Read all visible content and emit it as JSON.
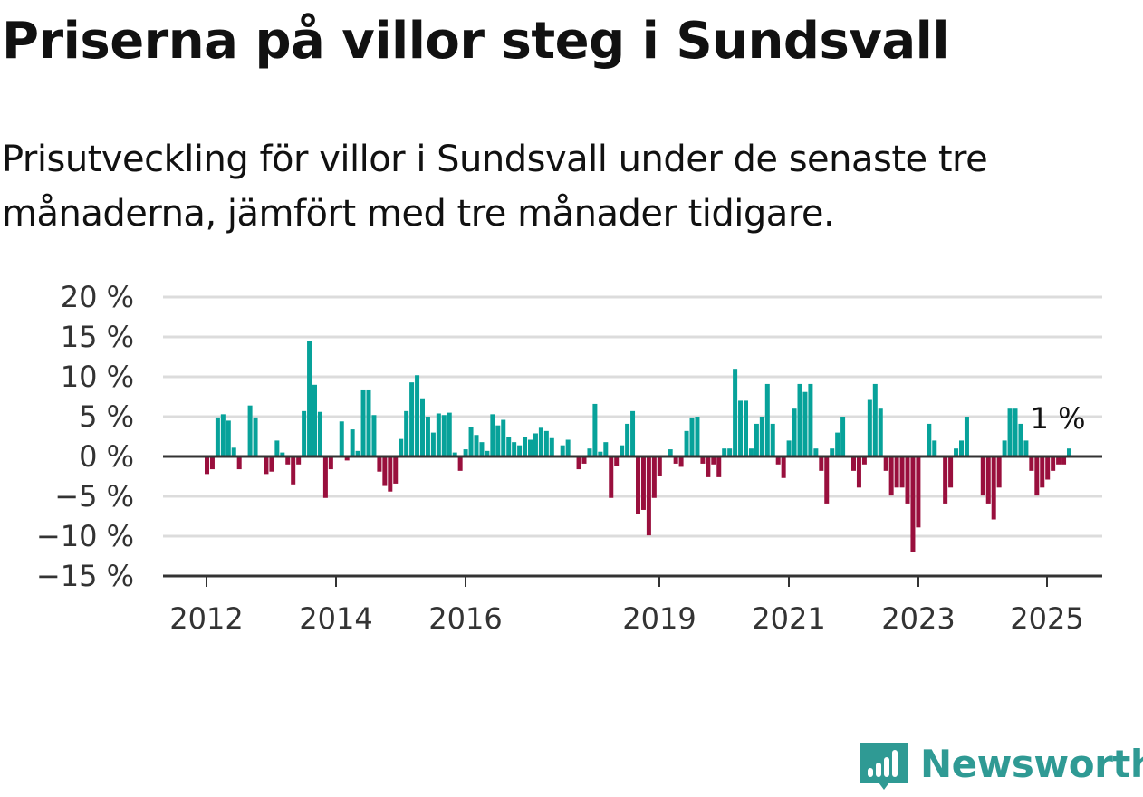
{
  "title": "Priserna på villor steg i Sundsvall",
  "subtitle": "Prisutveckling för villor i Sundsvall under de senaste tre månaderna, jämfört med tre månader tidigare.",
  "brand": {
    "name": "Newsworthy",
    "color": "#2f9a94",
    "icon": "bar-chart-speech-bubble-icon"
  },
  "colors": {
    "positive": "#07a29a",
    "negative": "#990f3d",
    "zero_line": "#333333",
    "grid": "#dcdcdc"
  },
  "chart_data": {
    "type": "bar",
    "y_unit": "%",
    "ylim": [
      -15,
      20
    ],
    "y_ticks": [
      {
        "value": 20,
        "label": "20 %"
      },
      {
        "value": 15,
        "label": "15 %"
      },
      {
        "value": 10,
        "label": "10 %"
      },
      {
        "value": 5,
        "label": "5 %"
      },
      {
        "value": 0,
        "label": "0 %"
      },
      {
        "value": -5,
        "label": "−5 %"
      },
      {
        "value": -10,
        "label": "−10 %"
      },
      {
        "value": -15,
        "label": "−15 %"
      }
    ],
    "x_ticks": [
      "2012",
      "2014",
      "2016",
      "2019",
      "2021",
      "2023",
      "2025"
    ],
    "grid": true,
    "last_value_label": "1 %",
    "values": [
      -2.2,
      -1.6,
      4.9,
      5.3,
      4.5,
      1.1,
      -1.6,
      0,
      6.4,
      4.9,
      0,
      -2.2,
      -1.9,
      2.0,
      0.5,
      -1.0,
      -3.5,
      -1.0,
      5.7,
      14.5,
      9.0,
      5.6,
      -5.2,
      -1.6,
      0,
      4.4,
      -0.5,
      3.4,
      0.7,
      8.3,
      8.3,
      5.2,
      -1.9,
      -3.7,
      -4.4,
      -3.4,
      2.2,
      5.7,
      9.3,
      10.2,
      7.3,
      5.0,
      3.0,
      5.4,
      5.2,
      5.5,
      0.5,
      -1.8,
      0.9,
      3.7,
      2.7,
      1.8,
      0.7,
      5.3,
      3.9,
      4.6,
      2.4,
      1.8,
      1.4,
      2.4,
      2.1,
      2.9,
      3.6,
      3.2,
      2.3,
      0,
      1.4,
      2.1,
      0,
      -1.6,
      -0.9,
      1.0,
      6.6,
      0.6,
      1.8,
      -5.2,
      -1.2,
      1.4,
      4.1,
      5.7,
      -7.2,
      -6.7,
      -9.9,
      -5.2,
      -2.5,
      0,
      0.9,
      -0.9,
      -1.3,
      3.2,
      4.9,
      5.0,
      -0.9,
      -2.6,
      -1.0,
      -2.6,
      1.0,
      1.0,
      11.0,
      7.0,
      7.0,
      1.0,
      4.1,
      5.0,
      9.1,
      4.1,
      -1.0,
      -2.7,
      2.0,
      6.0,
      9.1,
      8.1,
      9.1,
      1.0,
      -1.8,
      -5.9,
      1.0,
      3.0,
      5.0,
      0,
      -1.8,
      -3.9,
      -1.0,
      7.1,
      9.1,
      6.0,
      -1.8,
      -4.9,
      -3.9,
      -3.9,
      -5.9,
      -12.0,
      -8.9,
      0,
      4.1,
      2.0,
      0,
      -5.9,
      -3.9,
      1.0,
      2.0,
      5.0,
      0,
      0,
      -4.9,
      -5.9,
      -7.9,
      -3.9,
      2.0,
      6.0,
      6.0,
      4.1,
      2.0,
      -1.8,
      -4.9,
      -3.9,
      -2.9,
      -1.8,
      -1.0,
      -1.0,
      1.0
    ]
  }
}
